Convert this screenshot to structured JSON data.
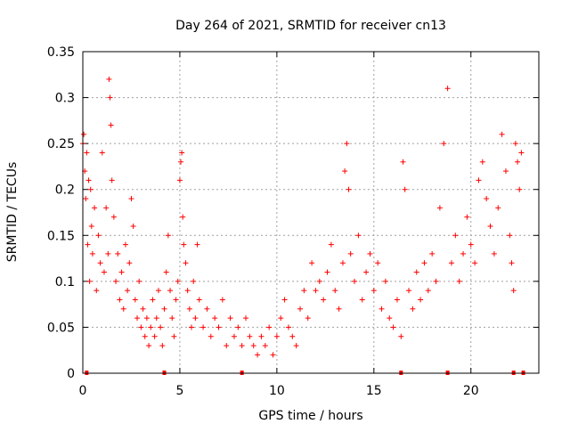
{
  "chart_data": {
    "type": "scatter",
    "title": "Day 264 of 2021, SRMTID for receiver cn13",
    "xlabel": "GPS time / hours",
    "ylabel": "SRMTID / TECUs",
    "xlim": [
      0,
      23.5
    ],
    "ylim": [
      0,
      0.35
    ],
    "x_ticks": [
      0,
      5,
      10,
      15,
      20
    ],
    "x_tick_labels": [
      "0",
      "5",
      "10",
      "15",
      "20"
    ],
    "y_ticks": [
      0,
      0.05,
      0.1,
      0.15,
      0.2,
      0.25,
      0.3,
      0.35
    ],
    "y_tick_labels": [
      "0",
      "0.05",
      "0.1",
      "0.15",
      "0.2",
      "0.25",
      "0.3",
      "0.35"
    ],
    "grid": true,
    "marker": "+",
    "color": "#ff0000",
    "series": [
      {
        "name": "SRMTID",
        "points": [
          [
            0.0,
            0.25
          ],
          [
            0.05,
            0.26
          ],
          [
            0.1,
            0.22
          ],
          [
            0.15,
            0.19
          ],
          [
            0.2,
            0.24
          ],
          [
            0.25,
            0.14
          ],
          [
            0.3,
            0.21
          ],
          [
            0.35,
            0.1
          ],
          [
            0.4,
            0.2
          ],
          [
            0.45,
            0.16
          ],
          [
            0.5,
            0.13
          ],
          [
            0.6,
            0.18
          ],
          [
            0.7,
            0.09
          ],
          [
            0.8,
            0.15
          ],
          [
            0.9,
            0.12
          ],
          [
            1.0,
            0.24
          ],
          [
            1.1,
            0.11
          ],
          [
            1.2,
            0.18
          ],
          [
            1.3,
            0.13
          ],
          [
            1.35,
            0.32
          ],
          [
            1.4,
            0.3
          ],
          [
            1.45,
            0.27
          ],
          [
            1.5,
            0.21
          ],
          [
            1.6,
            0.17
          ],
          [
            1.7,
            0.1
          ],
          [
            1.8,
            0.13
          ],
          [
            1.9,
            0.08
          ],
          [
            2.0,
            0.11
          ],
          [
            2.1,
            0.07
          ],
          [
            2.2,
            0.14
          ],
          [
            2.3,
            0.09
          ],
          [
            2.4,
            0.12
          ],
          [
            2.5,
            0.19
          ],
          [
            2.6,
            0.16
          ],
          [
            2.7,
            0.08
          ],
          [
            2.8,
            0.06
          ],
          [
            2.9,
            0.1
          ],
          [
            3.0,
            0.05
          ],
          [
            3.1,
            0.07
          ],
          [
            3.2,
            0.04
          ],
          [
            3.3,
            0.06
          ],
          [
            3.4,
            0.03
          ],
          [
            3.5,
            0.05
          ],
          [
            3.6,
            0.08
          ],
          [
            3.7,
            0.04
          ],
          [
            3.8,
            0.06
          ],
          [
            3.9,
            0.09
          ],
          [
            4.0,
            0.05
          ],
          [
            4.1,
            0.03
          ],
          [
            4.2,
            0.07
          ],
          [
            4.3,
            0.11
          ],
          [
            4.4,
            0.15
          ],
          [
            4.5,
            0.09
          ],
          [
            4.6,
            0.06
          ],
          [
            4.7,
            0.04
          ],
          [
            4.8,
            0.08
          ],
          [
            4.9,
            0.1
          ],
          [
            5.0,
            0.21
          ],
          [
            5.05,
            0.23
          ],
          [
            5.1,
            0.24
          ],
          [
            5.15,
            0.17
          ],
          [
            5.2,
            0.14
          ],
          [
            5.3,
            0.12
          ],
          [
            5.4,
            0.09
          ],
          [
            5.5,
            0.07
          ],
          [
            5.6,
            0.05
          ],
          [
            5.7,
            0.1
          ],
          [
            5.8,
            0.06
          ],
          [
            5.9,
            0.14
          ],
          [
            6.0,
            0.08
          ],
          [
            6.2,
            0.05
          ],
          [
            6.4,
            0.07
          ],
          [
            6.6,
            0.04
          ],
          [
            6.8,
            0.06
          ],
          [
            7.0,
            0.05
          ],
          [
            7.2,
            0.08
          ],
          [
            7.4,
            0.03
          ],
          [
            7.6,
            0.06
          ],
          [
            7.8,
            0.04
          ],
          [
            8.0,
            0.05
          ],
          [
            8.2,
            0.03
          ],
          [
            8.4,
            0.06
          ],
          [
            8.6,
            0.04
          ],
          [
            8.8,
            0.03
          ],
          [
            9.0,
            0.02
          ],
          [
            9.2,
            0.04
          ],
          [
            9.4,
            0.03
          ],
          [
            9.6,
            0.05
          ],
          [
            9.8,
            0.02
          ],
          [
            10.0,
            0.04
          ],
          [
            10.2,
            0.06
          ],
          [
            10.4,
            0.08
          ],
          [
            10.6,
            0.05
          ],
          [
            10.8,
            0.04
          ],
          [
            11.0,
            0.03
          ],
          [
            11.2,
            0.07
          ],
          [
            11.4,
            0.09
          ],
          [
            11.6,
            0.06
          ],
          [
            11.8,
            0.12
          ],
          [
            12.0,
            0.09
          ],
          [
            12.2,
            0.1
          ],
          [
            12.4,
            0.08
          ],
          [
            12.6,
            0.11
          ],
          [
            12.8,
            0.14
          ],
          [
            13.0,
            0.09
          ],
          [
            13.2,
            0.07
          ],
          [
            13.4,
            0.12
          ],
          [
            13.5,
            0.22
          ],
          [
            13.6,
            0.25
          ],
          [
            13.7,
            0.2
          ],
          [
            13.8,
            0.13
          ],
          [
            14.0,
            0.1
          ],
          [
            14.2,
            0.15
          ],
          [
            14.4,
            0.08
          ],
          [
            14.6,
            0.11
          ],
          [
            14.8,
            0.13
          ],
          [
            15.0,
            0.09
          ],
          [
            15.2,
            0.12
          ],
          [
            15.4,
            0.07
          ],
          [
            15.6,
            0.1
          ],
          [
            15.8,
            0.06
          ],
          [
            16.0,
            0.05
          ],
          [
            16.2,
            0.08
          ],
          [
            16.4,
            0.04
          ],
          [
            16.5,
            0.23
          ],
          [
            16.6,
            0.2
          ],
          [
            16.8,
            0.09
          ],
          [
            17.0,
            0.07
          ],
          [
            17.2,
            0.11
          ],
          [
            17.4,
            0.08
          ],
          [
            17.6,
            0.12
          ],
          [
            17.8,
            0.09
          ],
          [
            18.0,
            0.13
          ],
          [
            18.2,
            0.1
          ],
          [
            18.4,
            0.18
          ],
          [
            18.6,
            0.25
          ],
          [
            18.8,
            0.31
          ],
          [
            19.0,
            0.12
          ],
          [
            19.2,
            0.15
          ],
          [
            19.4,
            0.1
          ],
          [
            19.6,
            0.13
          ],
          [
            19.8,
            0.17
          ],
          [
            20.0,
            0.14
          ],
          [
            20.2,
            0.12
          ],
          [
            20.4,
            0.21
          ],
          [
            20.6,
            0.23
          ],
          [
            20.8,
            0.19
          ],
          [
            21.0,
            0.16
          ],
          [
            21.2,
            0.13
          ],
          [
            21.4,
            0.18
          ],
          [
            21.6,
            0.26
          ],
          [
            21.8,
            0.22
          ],
          [
            22.0,
            0.15
          ],
          [
            22.1,
            0.12
          ],
          [
            22.2,
            0.09
          ],
          [
            22.3,
            0.25
          ],
          [
            22.4,
            0.23
          ],
          [
            22.5,
            0.2
          ],
          [
            22.6,
            0.24
          ]
        ]
      }
    ],
    "axis_markers_x": [
      0.2,
      4.2,
      8.2,
      16.4,
      18.8,
      22.2,
      22.7
    ]
  }
}
